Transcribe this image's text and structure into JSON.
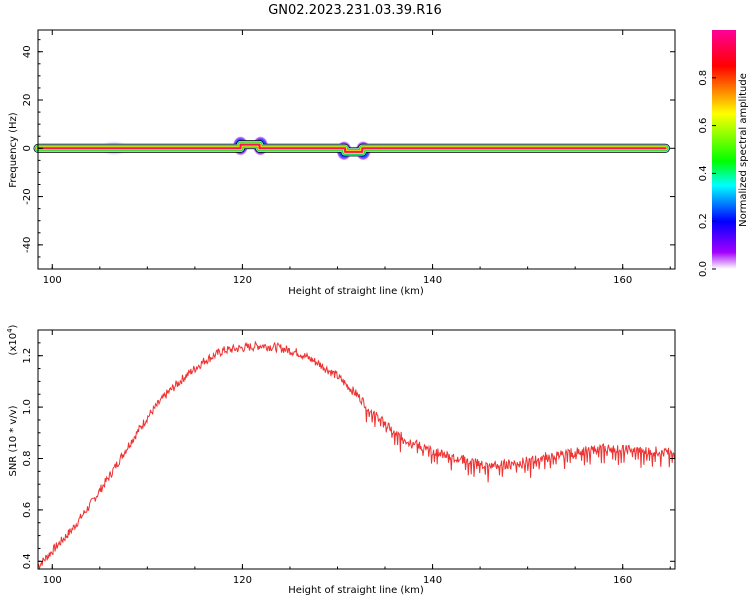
{
  "title": "GN02.2023.231.03.39.R16",
  "chart_data": [
    {
      "type": "heatmap",
      "xlabel": "Height of straight line (km)",
      "ylabel": "Frequency (Hz)",
      "xlim": [
        98.5,
        165.5
      ],
      "ylim": [
        -50,
        49
      ],
      "xticks": [
        100,
        120,
        140,
        160
      ],
      "yticks": [
        -40,
        -20,
        0,
        20,
        40
      ],
      "line_segments": [
        {
          "x": [
            98.5,
            119.8
          ],
          "y": 0
        },
        {
          "x": [
            119.8,
            121.8
          ],
          "y": 1.5
        },
        {
          "x": [
            121.8,
            130.8
          ],
          "y": 0
        },
        {
          "x": [
            130.8,
            132.6
          ],
          "y": -1.5
        },
        {
          "x": [
            132.6,
            164.5
          ],
          "y": 0
        }
      ],
      "blobs": [
        {
          "x": 106.5,
          "y": 0
        },
        {
          "x": 119.8,
          "y": 1
        },
        {
          "x": 121.9,
          "y": 1
        },
        {
          "x": 130.7,
          "y": -1
        },
        {
          "x": 132.7,
          "y": -1
        }
      ],
      "colorbar": {
        "label": "Normalized spectral amplitude",
        "ticks": [
          0.0,
          0.2,
          0.4,
          0.6,
          0.8
        ],
        "range": [
          0,
          1
        ],
        "colors": [
          "#ffffff",
          "#a200ff",
          "#0000ff",
          "#00ffff",
          "#00ff00",
          "#ffff00",
          "#ff0000",
          "#ff0099"
        ]
      }
    },
    {
      "type": "line",
      "xlabel": "Height of straight line (km)",
      "ylabel": "SNR (10 * v/v)",
      "scale_note": "(x10",
      "scale_exp": "4",
      "scale_close": ")",
      "xlim": [
        98.5,
        165.5
      ],
      "ylim": [
        0.37,
        1.3
      ],
      "xticks": [
        100,
        120,
        140,
        160
      ],
      "yticks": [
        0.4,
        0.6,
        0.8,
        1.0,
        1.2
      ],
      "ytick_labels": [
        "0.4",
        "0.6",
        "0.8",
        "1.0",
        "1.2"
      ],
      "color": "#ee3333",
      "x": [
        98.5,
        100,
        102,
        104,
        106,
        108,
        110,
        112,
        114,
        116,
        118,
        120,
        122,
        124,
        126,
        128,
        130,
        132,
        134,
        136,
        138,
        140,
        142,
        144,
        146,
        148,
        150,
        152,
        154,
        156,
        158,
        160,
        162,
        164,
        165.5
      ],
      "y": [
        0.38,
        0.44,
        0.52,
        0.62,
        0.73,
        0.85,
        0.96,
        1.05,
        1.12,
        1.18,
        1.22,
        1.23,
        1.24,
        1.23,
        1.21,
        1.17,
        1.12,
        1.05,
        0.97,
        0.9,
        0.86,
        0.83,
        0.81,
        0.79,
        0.77,
        0.78,
        0.79,
        0.81,
        0.82,
        0.83,
        0.84,
        0.84,
        0.83,
        0.83,
        0.82
      ]
    }
  ]
}
